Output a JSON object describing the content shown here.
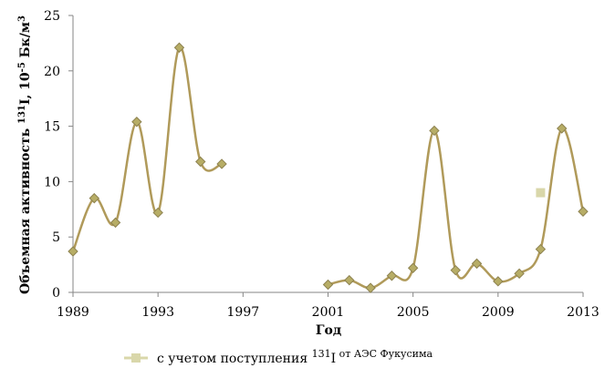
{
  "chart_data": {
    "type": "line",
    "ylabel": [
      "Объемная активность ",
      "131",
      "I, 10",
      "-5",
      " Бк/м",
      "3"
    ],
    "xlabel": "Год",
    "x": [
      1989,
      1990,
      1991,
      1992,
      1993,
      1994,
      1995,
      1996,
      1997,
      1998,
      1999,
      2000,
      2001,
      2002,
      2003,
      2004,
      2005,
      2006,
      2007,
      2008,
      2009,
      2010,
      2011,
      2012,
      2013
    ],
    "series": [
      {
        "color": "#b09a5a",
        "marker_color": "#b7ad66",
        "values": [
          3.7,
          8.5,
          6.3,
          15.4,
          7.2,
          22.1,
          11.8,
          11.6,
          null,
          null,
          null,
          null,
          0.7,
          1.1,
          0.4,
          1.5,
          2.2,
          14.6,
          2.0,
          2.6,
          1.0,
          1.7,
          3.9,
          14.8,
          7.3
        ]
      },
      {
        "name": [
          "с учетом поступления ",
          "131",
          "I",
          " от АЭС Фукусима"
        ],
        "color": "#d9d7aa",
        "x": [
          2011
        ],
        "values": [
          9.0
        ]
      }
    ],
    "xlim": [
      1989,
      2013
    ],
    "xticks": [
      1989,
      1993,
      1997,
      2001,
      2005,
      2009,
      2013
    ],
    "ylim": [
      0,
      25
    ],
    "yticks": [
      0,
      5,
      10,
      15,
      20,
      25
    ],
    "grid": false
  }
}
